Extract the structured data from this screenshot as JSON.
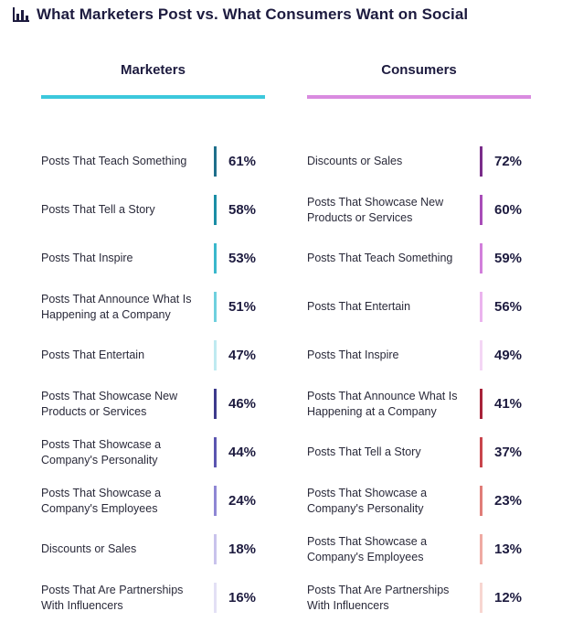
{
  "title": "What Marketers Post vs. What Consumers Want on Social",
  "icon": "bar-chart-icon",
  "colors": {
    "marketers_accent": "#3cc8dc",
    "consumers_accent": "#d98be0"
  },
  "chart_data": [
    {
      "type": "table",
      "title": "Marketers",
      "categories": [
        "Posts That Teach Something",
        "Posts That Tell a Story",
        "Posts That Inspire",
        "Posts That Announce What Is Happening at a Company",
        "Posts That Entertain",
        "Posts That Showcase New Products or Services",
        "Posts That Showcase a Company's Personality",
        "Posts That Showcase a Company's Employees",
        "Discounts or Sales",
        "Posts That Are Partnerships With Influencers"
      ],
      "values": [
        61,
        58,
        53,
        51,
        47,
        46,
        44,
        24,
        18,
        16
      ],
      "labels": [
        "61%",
        "58%",
        "53%",
        "51%",
        "47%",
        "46%",
        "44%",
        "24%",
        "18%",
        "16%"
      ],
      "bar_colors": [
        "#1f6f8b",
        "#1b8ea6",
        "#3ab8cc",
        "#6fd0de",
        "#bfeaf1",
        "#3d3a8c",
        "#5b55b0",
        "#8f87d4",
        "#c9c3ec",
        "#e3e0f5"
      ]
    },
    {
      "type": "table",
      "title": "Consumers",
      "categories": [
        "Discounts or Sales",
        "Posts That Showcase New Products or Services",
        "Posts That Teach Something",
        "Posts That Entertain",
        "Posts That Inspire",
        "Posts That Announce What Is Happening at a Company",
        "Posts That Tell a Story",
        "Posts That Showcase a Company's Personality",
        "Posts That Showcase a Company's Employees",
        "Posts That Are Partnerships With Influencers"
      ],
      "values": [
        72,
        60,
        59,
        56,
        49,
        41,
        37,
        23,
        13,
        12
      ],
      "labels": [
        "72%",
        "60%",
        "59%",
        "56%",
        "49%",
        "41%",
        "37%",
        "23%",
        "13%",
        "12%"
      ],
      "bar_colors": [
        "#7a2d8a",
        "#a84db8",
        "#d27fdb",
        "#ebb4ee",
        "#f4d6f5",
        "#a7233a",
        "#c8454c",
        "#e07d78",
        "#efaaa3",
        "#f7d6d1"
      ]
    }
  ]
}
